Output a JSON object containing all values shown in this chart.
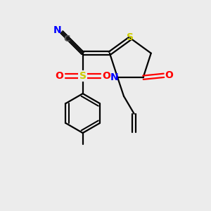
{
  "bg_color": "#ececec",
  "atom_colors": {
    "S": "#cccc00",
    "N": "#0000ff",
    "O": "#ff0000",
    "C": "#000000",
    "CN_C": "#555555"
  },
  "lw": 1.6,
  "fs": 10
}
